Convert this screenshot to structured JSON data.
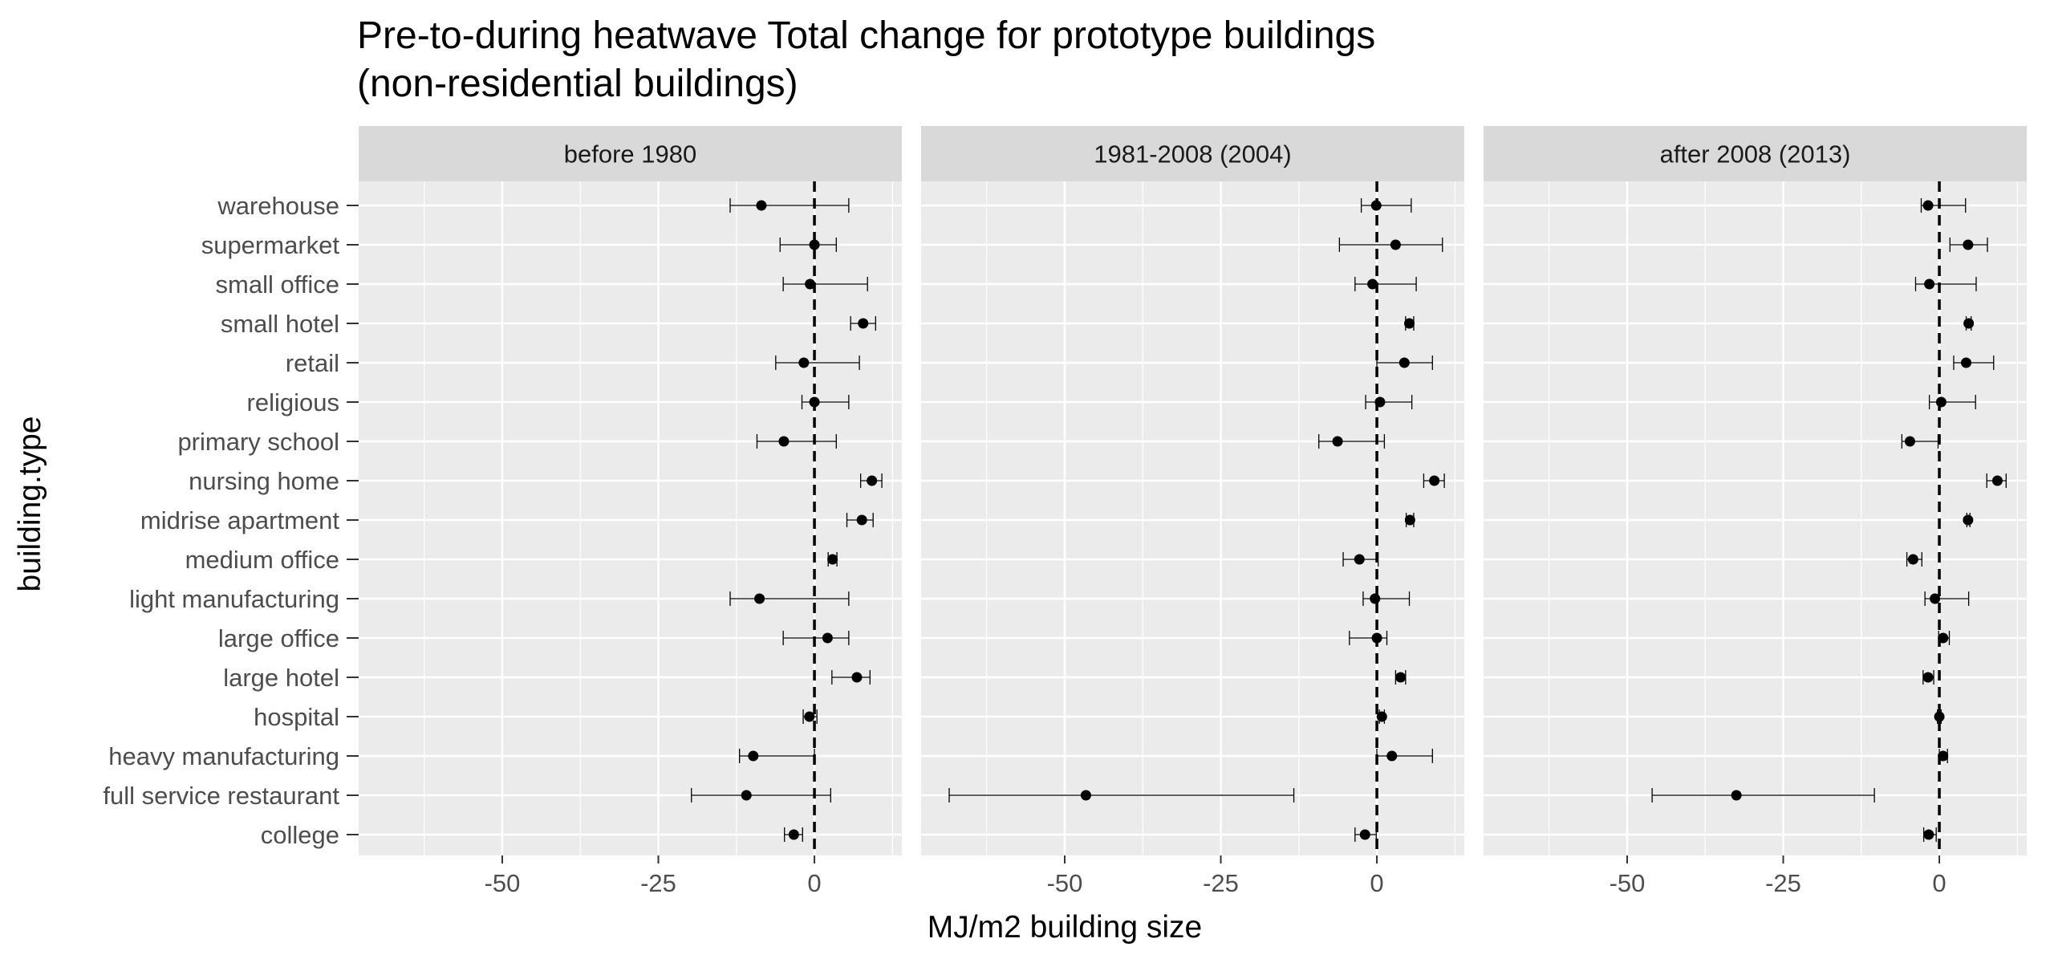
{
  "chart_data": {
    "type": "scatter",
    "subtype": "dot-whisker faceted",
    "title_lines": [
      "Pre-to-during heatwave Total change for prototype buildings",
      "(non-residential buildings)"
    ],
    "xlabel": "MJ/m2 building size",
    "ylabel": "building.type",
    "xlim": [
      -73,
      14
    ],
    "x_ticks": [
      -50,
      -25,
      0
    ],
    "x_tick_labels": [
      "-50",
      "-25",
      "0"
    ],
    "reference_line": 0,
    "grid": true,
    "legend": "none",
    "categories": [
      "warehouse",
      "supermarket",
      "small office",
      "small hotel",
      "retail",
      "religious",
      "primary school",
      "nursing home",
      "midrise apartment",
      "medium office",
      "light manufacturing",
      "large office",
      "large hotel",
      "hospital",
      "heavy manufacturing",
      "full service restaurant",
      "college"
    ],
    "panels": [
      {
        "name": "before 1980",
        "points": [
          {
            "y": "warehouse",
            "x": -8.5,
            "lo": -13.5,
            "hi": 5.5
          },
          {
            "y": "supermarket",
            "x": 0,
            "lo": -5.5,
            "hi": 3.5
          },
          {
            "y": "small office",
            "x": -0.7,
            "lo": -5,
            "hi": 8.5
          },
          {
            "y": "small hotel",
            "x": 7.8,
            "lo": 5.8,
            "hi": 9.8
          },
          {
            "y": "retail",
            "x": -1.7,
            "lo": -6.2,
            "hi": 7.2
          },
          {
            "y": "religious",
            "x": 0,
            "lo": -2,
            "hi": 5.5
          },
          {
            "y": "primary school",
            "x": -4.9,
            "lo": -9.2,
            "hi": 3.5
          },
          {
            "y": "nursing home",
            "x": 9.2,
            "lo": 7.4,
            "hi": 10.8
          },
          {
            "y": "midrise apartment",
            "x": 7.6,
            "lo": 5.2,
            "hi": 9.4
          },
          {
            "y": "medium office",
            "x": 2.9,
            "lo": 2.2,
            "hi": 3.6
          },
          {
            "y": "light manufacturing",
            "x": -8.8,
            "lo": -13.5,
            "hi": 5.5
          },
          {
            "y": "large office",
            "x": 2.1,
            "lo": -5,
            "hi": 5.5
          },
          {
            "y": "large hotel",
            "x": 6.8,
            "lo": 2.8,
            "hi": 8.9
          },
          {
            "y": "hospital",
            "x": -0.8,
            "lo": -1.8,
            "hi": 0.4
          },
          {
            "y": "heavy manufacturing",
            "x": -9.8,
            "lo": -12,
            "hi": 0
          },
          {
            "y": "full service restaurant",
            "x": -10.9,
            "lo": -19.7,
            "hi": 2.6
          },
          {
            "y": "college",
            "x": -3.3,
            "lo": -4.8,
            "hi": -1.9
          }
        ]
      },
      {
        "name": "1981-2008 (2004)",
        "points": [
          {
            "y": "warehouse",
            "x": -0.1,
            "lo": -2.5,
            "hi": 5.5
          },
          {
            "y": "supermarket",
            "x": 3,
            "lo": -6,
            "hi": 10.5
          },
          {
            "y": "small office",
            "x": -0.7,
            "lo": -3.5,
            "hi": 6.3
          },
          {
            "y": "small hotel",
            "x": 5.2,
            "lo": 4.6,
            "hi": 5.9
          },
          {
            "y": "retail",
            "x": 4.4,
            "lo": 0,
            "hi": 8.9
          },
          {
            "y": "religious",
            "x": 0.5,
            "lo": -1.8,
            "hi": 5.6
          },
          {
            "y": "primary school",
            "x": -6.3,
            "lo": -9.3,
            "hi": 1.2
          },
          {
            "y": "nursing home",
            "x": 9.2,
            "lo": 7.5,
            "hi": 10.8
          },
          {
            "y": "midrise apartment",
            "x": 5.3,
            "lo": 4.7,
            "hi": 5.9
          },
          {
            "y": "medium office",
            "x": -2.8,
            "lo": -5.4,
            "hi": 0.2
          },
          {
            "y": "light manufacturing",
            "x": -0.3,
            "lo": -2.2,
            "hi": 5.2
          },
          {
            "y": "large office",
            "x": 0,
            "lo": -4.4,
            "hi": 1.6
          },
          {
            "y": "large hotel",
            "x": 3.8,
            "lo": 3,
            "hi": 4.6
          },
          {
            "y": "hospital",
            "x": 0.8,
            "lo": 0.4,
            "hi": 1.2
          },
          {
            "y": "heavy manufacturing",
            "x": 2.4,
            "lo": 0,
            "hi": 8.9
          },
          {
            "y": "full service restaurant",
            "x": -46.6,
            "lo": -68.5,
            "hi": -13.3
          },
          {
            "y": "college",
            "x": -1.9,
            "lo": -3.5,
            "hi": -0.1
          }
        ]
      },
      {
        "name": "after 2008 (2013)",
        "points": [
          {
            "y": "warehouse",
            "x": -1.8,
            "lo": -2.9,
            "hi": 4.2
          },
          {
            "y": "supermarket",
            "x": 4.6,
            "lo": 1.7,
            "hi": 7.7
          },
          {
            "y": "small office",
            "x": -1.6,
            "lo": -3.8,
            "hi": 5.9
          },
          {
            "y": "small hotel",
            "x": 4.7,
            "lo": 4.3,
            "hi": 5.1
          },
          {
            "y": "retail",
            "x": 4.3,
            "lo": 2.3,
            "hi": 8.7
          },
          {
            "y": "religious",
            "x": 0.3,
            "lo": -1.6,
            "hi": 5.8
          },
          {
            "y": "primary school",
            "x": -4.7,
            "lo": -6,
            "hi": -0.2
          },
          {
            "y": "nursing home",
            "x": 9.3,
            "lo": 7.6,
            "hi": 10.7
          },
          {
            "y": "midrise apartment",
            "x": 4.6,
            "lo": 4.4,
            "hi": 4.9
          },
          {
            "y": "medium office",
            "x": -4.2,
            "lo": -5.2,
            "hi": -2.8
          },
          {
            "y": "light manufacturing",
            "x": -0.7,
            "lo": -2.3,
            "hi": 4.7
          },
          {
            "y": "large office",
            "x": 0.6,
            "lo": -0.1,
            "hi": 1.6
          },
          {
            "y": "large hotel",
            "x": -1.8,
            "lo": -2.6,
            "hi": -0.9
          },
          {
            "y": "hospital",
            "x": 0,
            "lo": -0.3,
            "hi": 0.3
          },
          {
            "y": "heavy manufacturing",
            "x": 0.6,
            "lo": 0,
            "hi": 1.3
          },
          {
            "y": "full service restaurant",
            "x": -32.5,
            "lo": -46,
            "hi": -10.4
          },
          {
            "y": "college",
            "x": -1.7,
            "lo": -2.5,
            "hi": -0.5
          }
        ]
      }
    ]
  },
  "colors": {
    "panel_background": "#ebebeb",
    "strip_background": "#d9d9d9",
    "grid_major": "#ffffff",
    "point": "#000000",
    "reference_line": "#000000"
  }
}
